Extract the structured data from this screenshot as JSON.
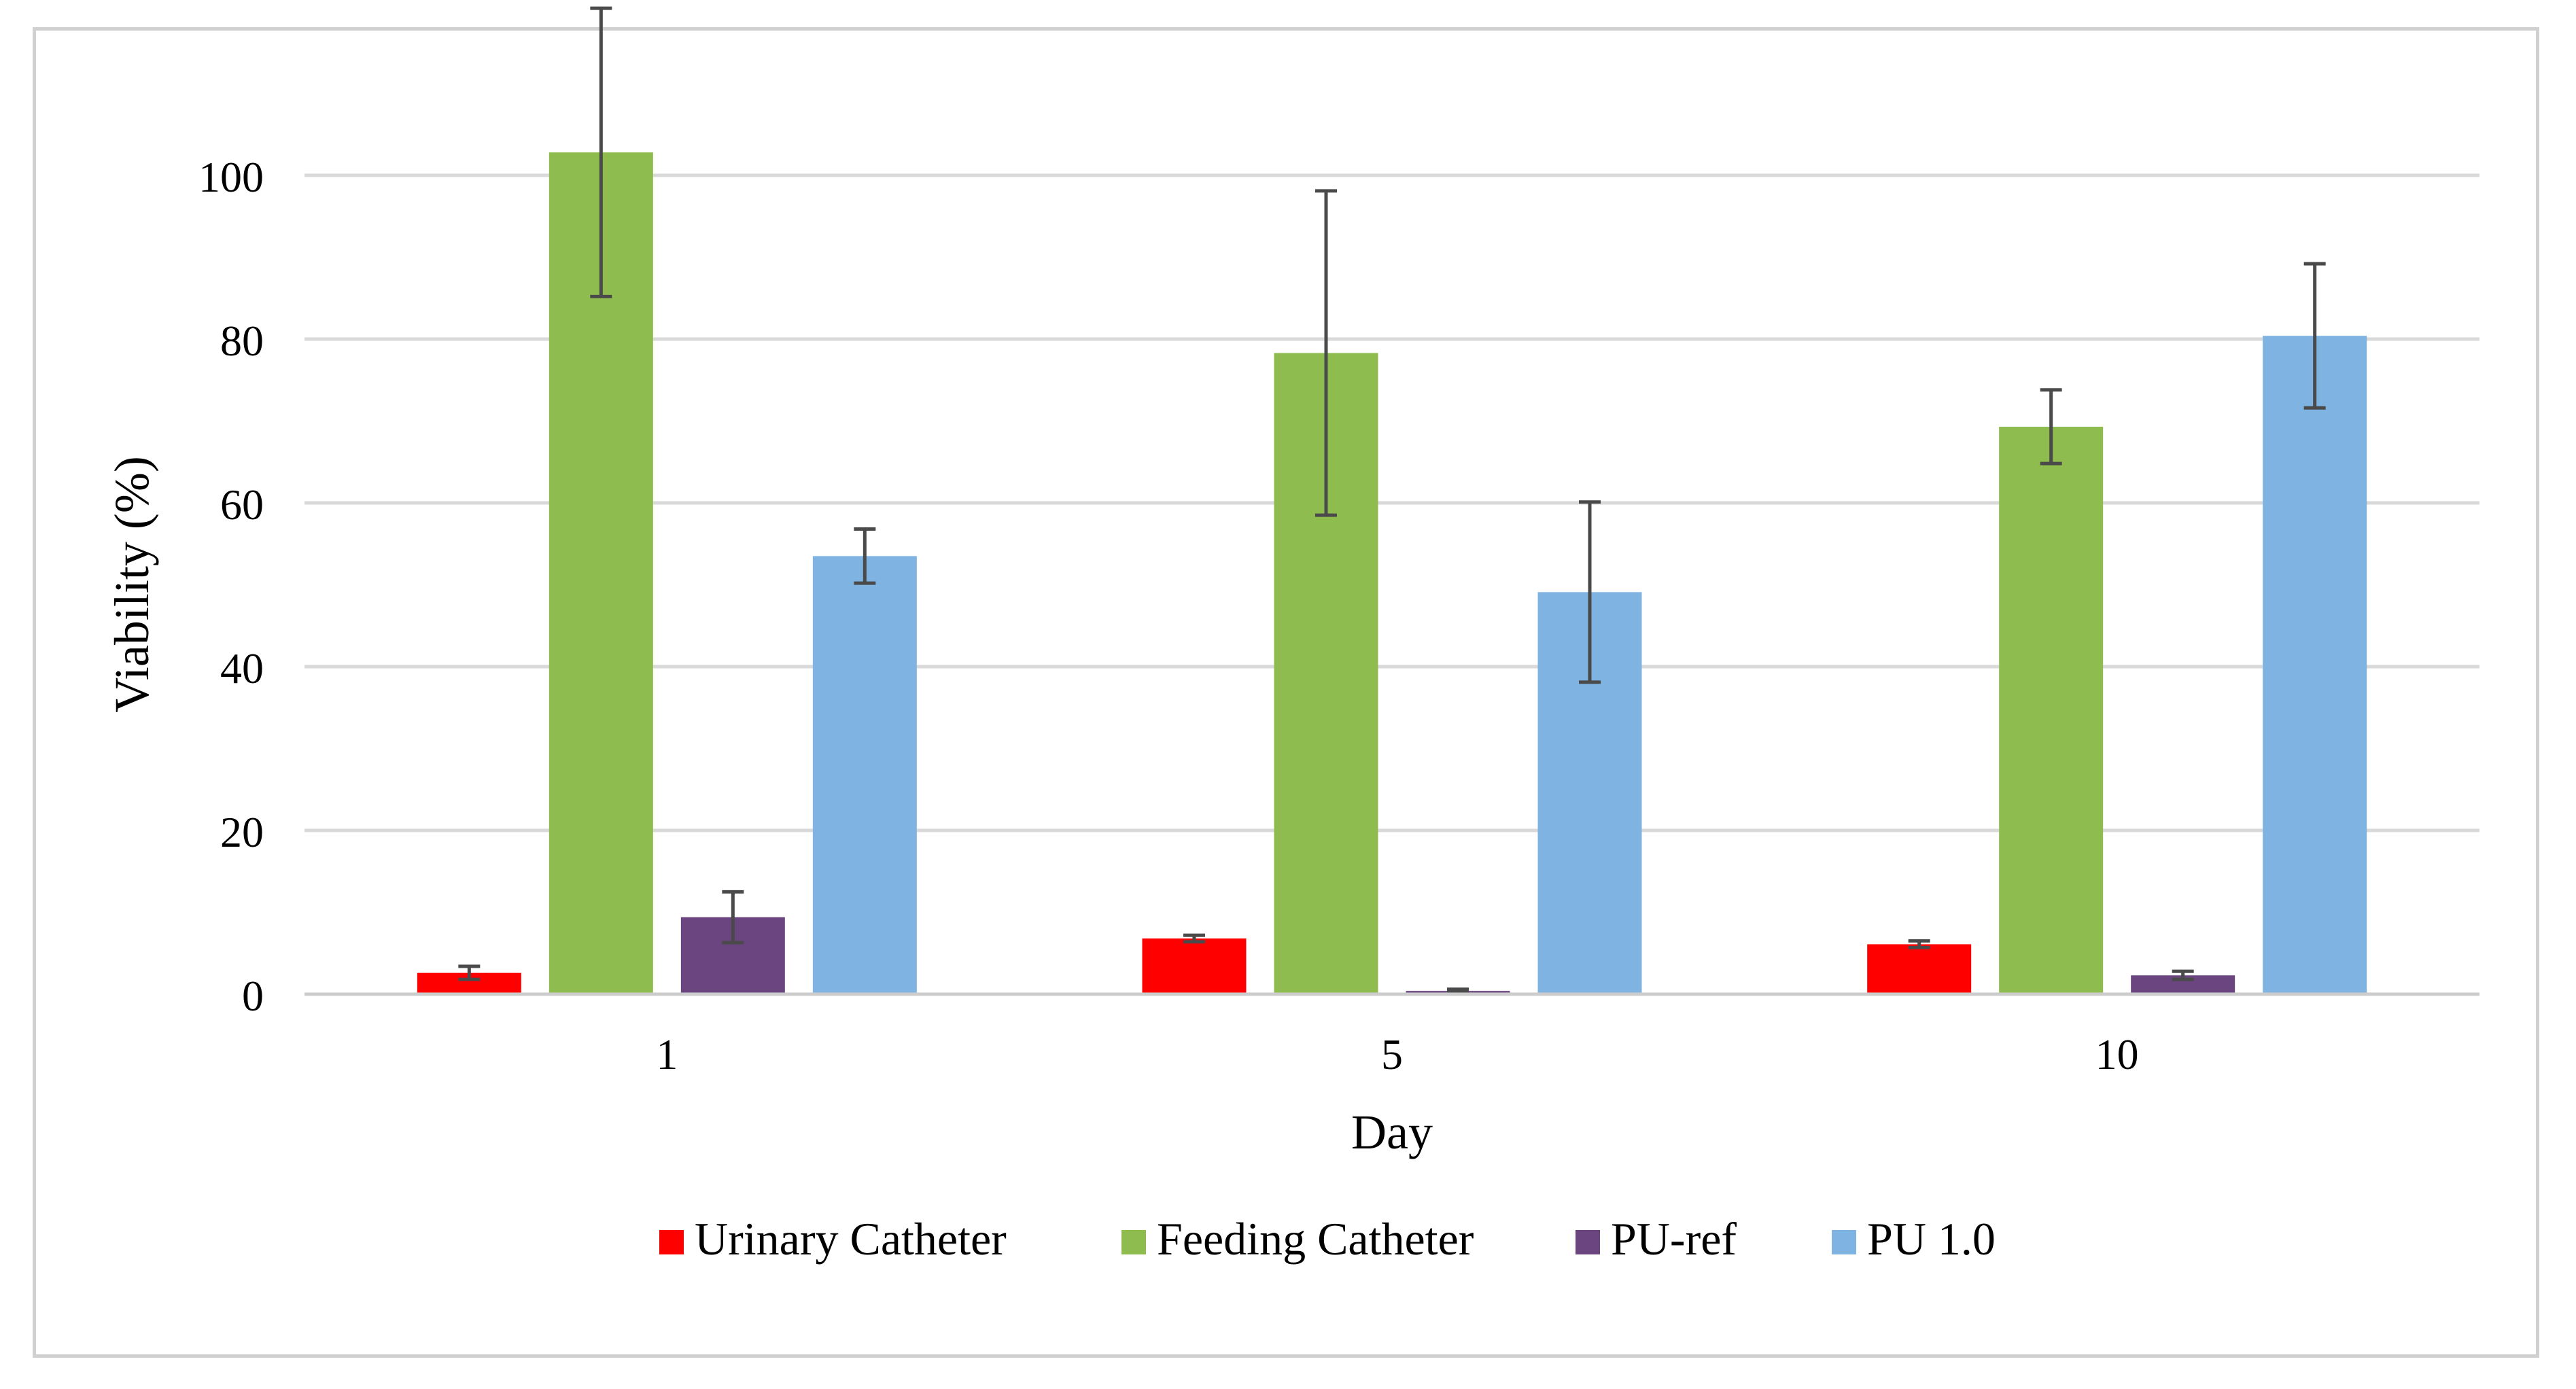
{
  "chart_data": {
    "type": "bar",
    "title": "",
    "xlabel": "Day",
    "ylabel": "Viability (%)",
    "ylim": [
      0,
      100
    ],
    "yticks": [
      0,
      20,
      40,
      60,
      80,
      100
    ],
    "grid": true,
    "legend_position": "bottom",
    "categories": [
      "1",
      "5",
      "10"
    ],
    "series": [
      {
        "name": "Urinary Catheter",
        "color": "#ff0000",
        "values": [
          2.6,
          6.8,
          6.1
        ],
        "errors": [
          0.8,
          0.4,
          0.4
        ]
      },
      {
        "name": "Feeding Catheter",
        "color": "#8fbc4e",
        "values": [
          102.8,
          78.3,
          69.3
        ],
        "errors": [
          17.6,
          19.8,
          4.5
        ]
      },
      {
        "name": "PU-ref",
        "color": "#6a4580",
        "values": [
          9.4,
          0.4,
          2.3
        ],
        "errors": [
          3.1,
          0.2,
          0.5
        ]
      },
      {
        "name": "PU 1.0",
        "color": "#7fb3e2",
        "values": [
          53.5,
          49.1,
          80.4
        ],
        "errors": [
          3.3,
          11.0,
          8.8
        ]
      }
    ]
  }
}
